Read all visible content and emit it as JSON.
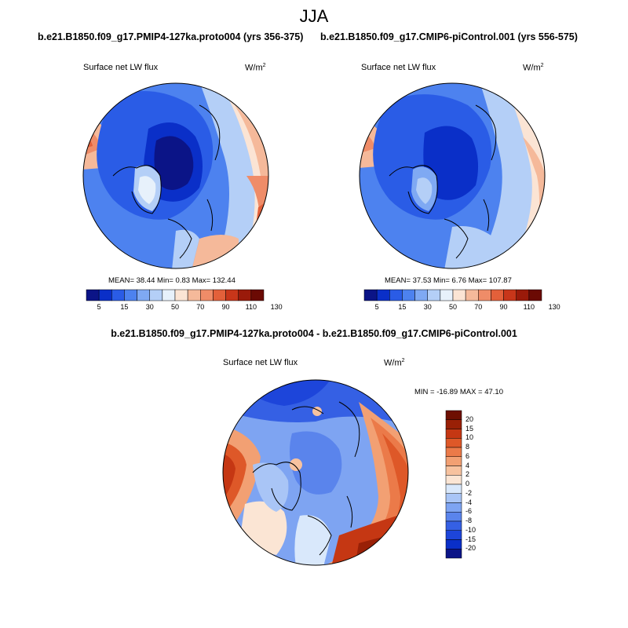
{
  "figure": {
    "season": "JJA"
  },
  "panels": [
    {
      "case": "b.e21.B1850.f09_g17.PMIP4-127ka.proto004 (yrs 356-375)",
      "variable": "Surface net LW flux",
      "units": "W/m",
      "units_sup": "2",
      "stats": "MEAN=  38.44  Min=   0.83  Max= 132.44",
      "colorbar_labels": [
        "5",
        "15",
        "30",
        "50",
        "70",
        "90",
        "110",
        "130"
      ]
    },
    {
      "case": "b.e21.B1850.f09_g17.CMIP6-piControl.001 (yrs 556-575)",
      "variable": "Surface net LW flux",
      "units": "W/m",
      "units_sup": "2",
      "stats": "MEAN=  37.53  Min=   6.76  Max= 107.87",
      "colorbar_labels": [
        "5",
        "15",
        "30",
        "50",
        "70",
        "90",
        "110",
        "130"
      ]
    },
    {
      "case": "b.e21.B1850.f09_g17.PMIP4-127ka.proto004 - b.e21.B1850.f09_g17.CMIP6-piControl.001",
      "variable": "Surface net LW flux",
      "units": "W/m",
      "units_sup": "2",
      "stats": "MIN = -16.89 MAX =  47.10",
      "colorbar_labels": [
        "20",
        "15",
        "10",
        "8",
        "6",
        "4",
        "2",
        "0",
        "-2",
        "-4",
        "-6",
        "-8",
        "-10",
        "-15",
        "-20"
      ]
    }
  ],
  "colors": {
    "abs_scale": [
      "#0b1487",
      "#0a2fc8",
      "#2a5ce6",
      "#4d82ef",
      "#7fa9f3",
      "#b4cff7",
      "#e7f1fb",
      "#fbe4d4",
      "#f5b99a",
      "#ef8c68",
      "#e3603a",
      "#c8361a",
      "#9a1a0a",
      "#6b0a04"
    ],
    "diff_scale": [
      "#0b1487",
      "#0a2fc8",
      "#1d45da",
      "#3560e4",
      "#5a84ec",
      "#7ea4f2",
      "#a9c5f6",
      "#d9e8fb",
      "#fbe5d4",
      "#f7c29f",
      "#f2a073",
      "#eb7a49",
      "#de5828",
      "#c53713",
      "#992006",
      "#6e0f02"
    ]
  }
}
